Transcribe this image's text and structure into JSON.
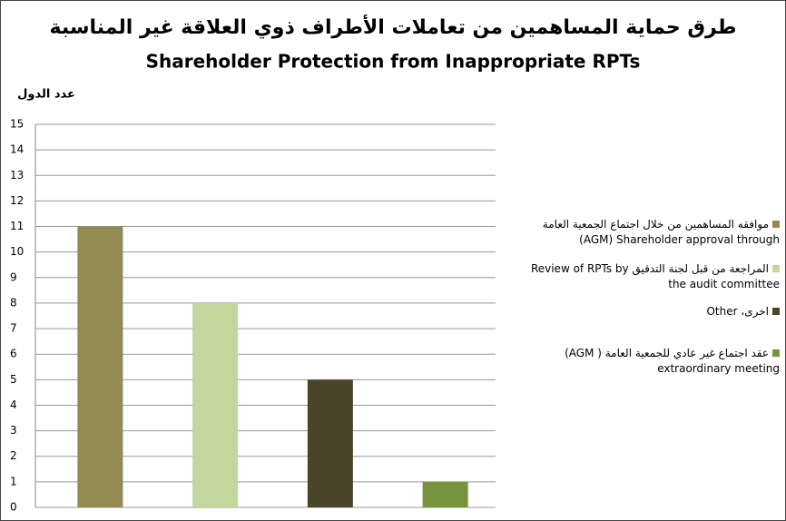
{
  "chart_data": {
    "type": "bar",
    "title": "طرق حماية المساهمين من تعاملات الأطراف ذوي العلاقة غير المناسبة",
    "subtitle": "Shareholder Protection from Inappropriate RPTs",
    "y_label": "عدد الدول",
    "series": [
      {
        "name": "موافقه المساهمين من خلال اجتماع الجمعية العامة AGM) Shareholder approval through)",
        "color": "#938953",
        "values": [
          11
        ]
      },
      {
        "name": "المراجعة من قبل لجنة التدقيق Review of RPTs by the audit committee",
        "color": "#c3d69b",
        "values": [
          8
        ]
      },
      {
        "name": "اخرى، Other",
        "color": "#4a452a",
        "values": [
          5
        ]
      },
      {
        "name": "عقد اجتماع غير عادي للجمعية العامة ( AGM) extraordinary meeting",
        "color": "#77933c",
        "values": [
          1
        ]
      }
    ],
    "ylim": [
      0,
      15
    ],
    "yticks": [
      0,
      1,
      2,
      3,
      4,
      5,
      6,
      7,
      8,
      9,
      10,
      11,
      12,
      13,
      14,
      15
    ],
    "grid": true,
    "legend": "right"
  }
}
